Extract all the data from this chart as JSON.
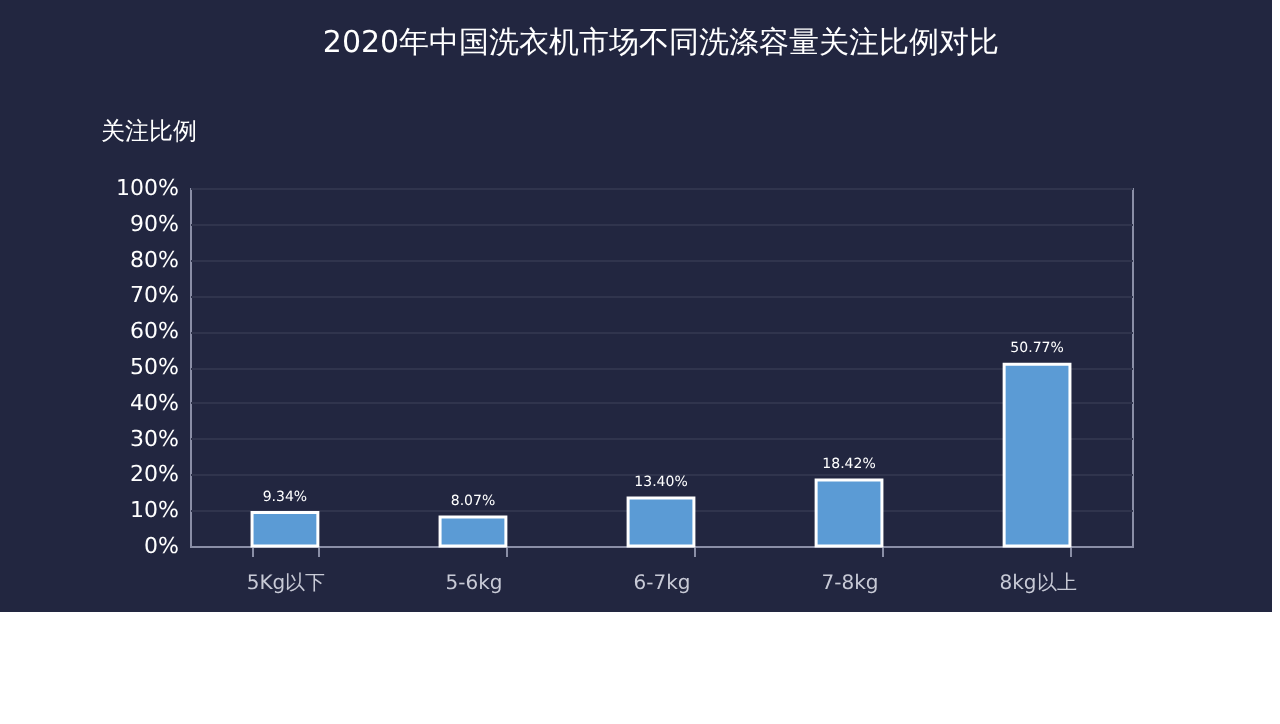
{
  "chart_data": {
    "type": "bar",
    "title": "2020年中国洗衣机市场不同洗涤容量关注比例对比",
    "ylabel": "关注比例",
    "categories": [
      "5Kg以下",
      "5-6kg",
      "6-7kg",
      "7-8kg",
      "8kg以上"
    ],
    "values": [
      9.34,
      8.07,
      13.4,
      18.42,
      50.77
    ],
    "value_labels": [
      "9.34%",
      "8.07%",
      "13.40%",
      "18.42%",
      "50.77%"
    ],
    "color": "#5b9bd5",
    "ylim": [
      0,
      100
    ],
    "yticks": [
      {
        "value": 0,
        "label": "0%"
      },
      {
        "value": 10,
        "label": "10%"
      },
      {
        "value": 20,
        "label": "20%"
      },
      {
        "value": 30,
        "label": "30%"
      },
      {
        "value": 40,
        "label": "40%"
      },
      {
        "value": 50,
        "label": "50%"
      },
      {
        "value": 60,
        "label": "60%"
      },
      {
        "value": 70,
        "label": "70%"
      },
      {
        "value": 80,
        "label": "80%"
      },
      {
        "value": 90,
        "label": "90%"
      },
      {
        "value": 100,
        "label": "100%"
      }
    ],
    "grid": "y"
  }
}
